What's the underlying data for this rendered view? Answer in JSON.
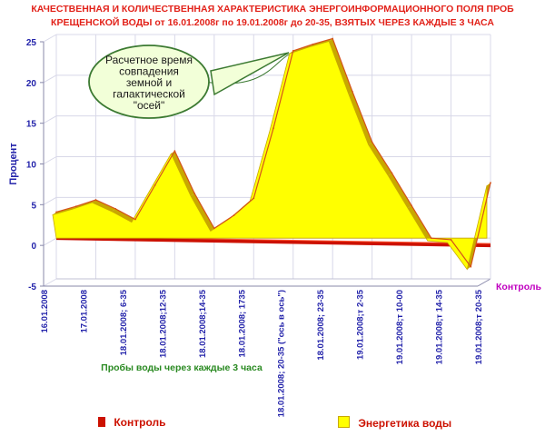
{
  "title": {
    "line1": "КАЧЕСТВЕННАЯ И КОЛИЧЕСТВЕННАЯ ХАРАКТЕРИСТИКА ЭНЕРГОИНФОРМАЦИОННОГО ПОЛЯ ПРОБ",
    "line2": "КРЕЩЕНСКОЙ ВОДЫ от 16.01.2008г по 19.01.2008г до 20-35, ВЗЯТЫХ ЧЕРЕЗ КАЖДЫЕ 3 ЧАСА"
  },
  "annotation": {
    "lines": [
      "Расчетное время",
      "совпадения",
      "земной и",
      "галактической",
      "\"осей\""
    ]
  },
  "legend": {
    "control": "Контроль",
    "energy": "Энергетика воды"
  },
  "colors": {
    "title": "#e2221a",
    "axis_text": "#2222aa",
    "energy_fill": "#ffff00",
    "energy_edge": "#c8a800",
    "control": "#cc1100",
    "grid": "#d8d8e8",
    "callout_fill": "#f2ffd8",
    "callout_stroke": "#3c7a32",
    "x_title": "#2a8a22",
    "series_axis_label": "#c000c0"
  },
  "chart_data": {
    "type": "area",
    "title": "КАЧЕСТВЕННАЯ И КОЛИЧЕСТВЕННАЯ ХАРАКТЕРИСТИКА ЭНЕРГОИНФОРМАЦИОННОГО ПОЛЯ ПРОБ КРЕЩЕНСКОЙ ВОДЫ от 16.01.2008г по 19.01.2008г до 20-35, ВЗЯТЫХ ЧЕРЕЗ КАЖДЫЕ 3 ЧАСА",
    "xlabel": "Пробы воды через каждые 3 часа",
    "ylabel": "Процент",
    "ylim": [
      -5,
      25
    ],
    "yticks": [
      -5,
      0,
      5,
      10,
      15,
      20,
      25
    ],
    "grid": true,
    "legend_position": "bottom",
    "depth_axis_label": "Контроль",
    "categories": [
      "16.01.2008",
      "",
      "17.01.2008",
      "",
      "18.01.2008; 6-35",
      "",
      "18.01.2008;12-35",
      "",
      "18.01.2008;14-35",
      "",
      "18.01.2008; 1735",
      "",
      "18.01.2008; 20-35 (\"ось в ось\")",
      "",
      "18.01.2008; 23-35",
      "",
      "19.01.2008;т 2-35",
      "",
      "19.01.2008;т 10-00",
      "",
      "19.01.2008;т 14-35",
      "",
      "19.01.2008;т 20-35"
    ],
    "series": [
      {
        "name": "Энергетика воды",
        "values": [
          3.2,
          3.9,
          4.7,
          3.6,
          2.3,
          6.5,
          10.7,
          5.5,
          1.2,
          2.8,
          4.9,
          13.5,
          23.0,
          23.8,
          24.5,
          18.0,
          11.8,
          8.0,
          4.0,
          0.0,
          -0.2,
          -3.5,
          6.8
        ]
      },
      {
        "name": "Контроль",
        "values": [
          0,
          0,
          0,
          0,
          0,
          0,
          0,
          0,
          0,
          0,
          0,
          0,
          0,
          0,
          0,
          0,
          0,
          0,
          0,
          0,
          0,
          0,
          0
        ]
      }
    ],
    "annotation": "Расчетное время совпадения земной и галактической \"осей\""
  }
}
